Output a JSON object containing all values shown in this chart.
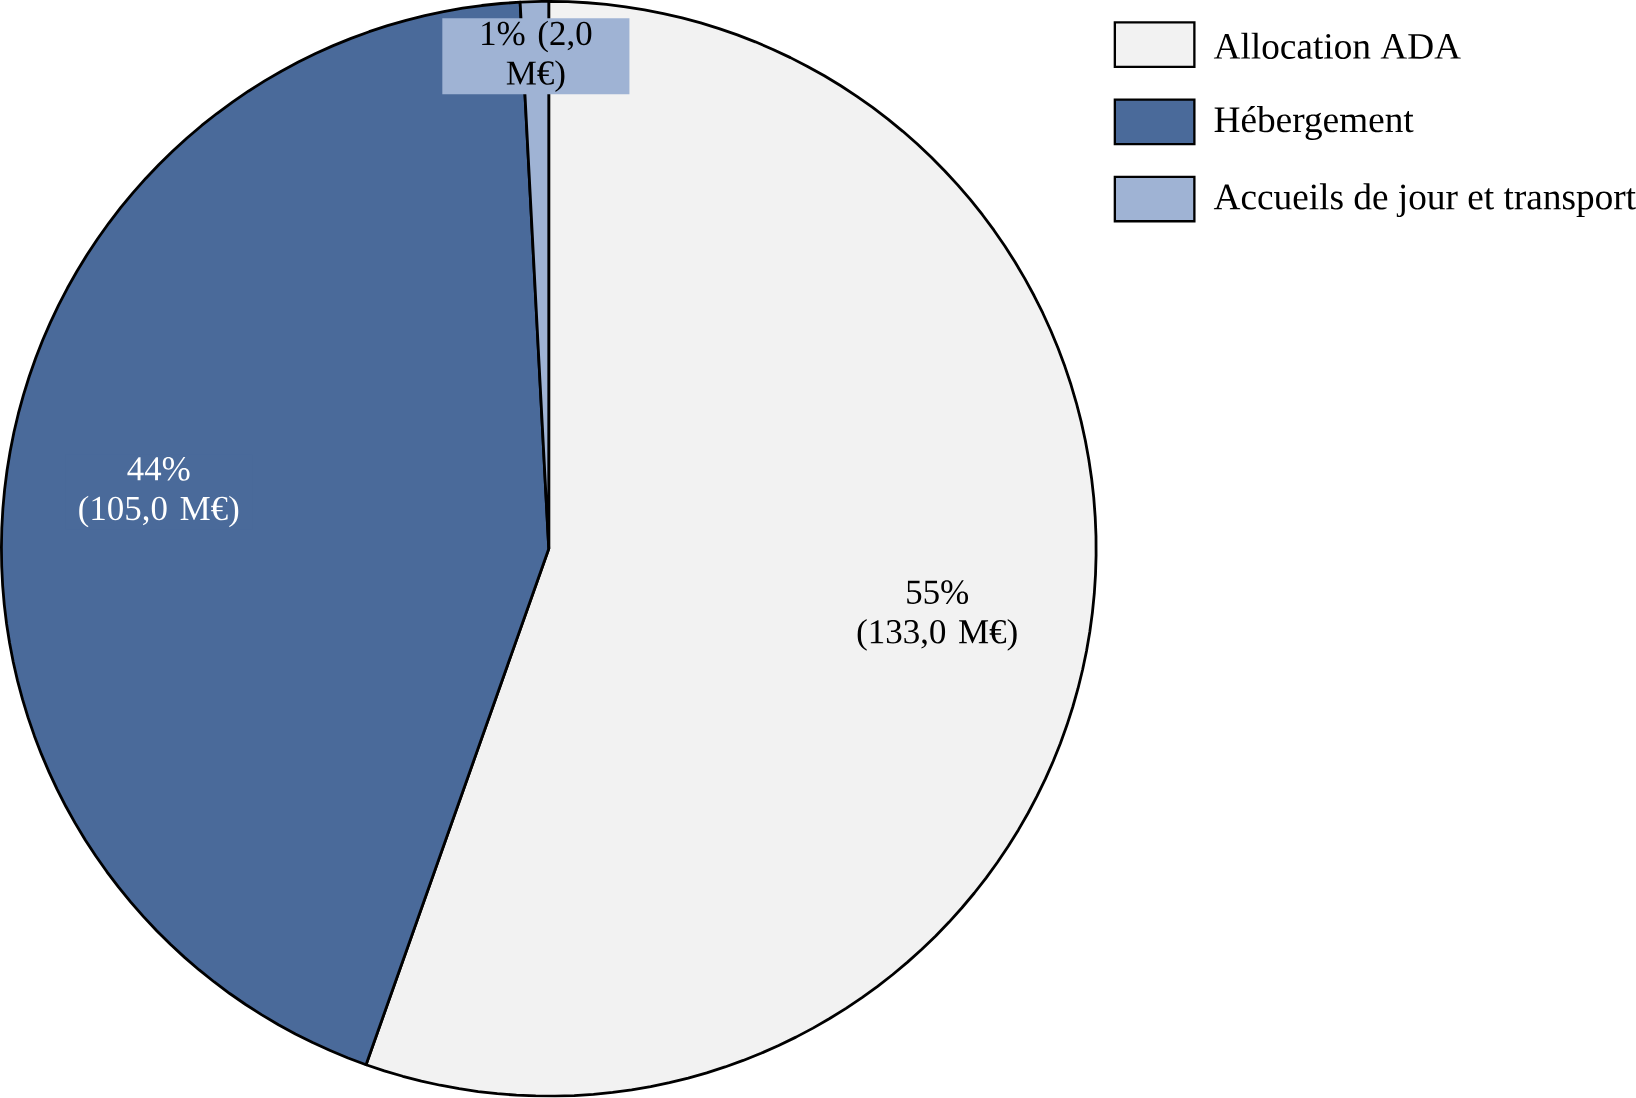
{
  "chart_data": {
    "type": "pie",
    "categories": [
      "Allocation ADA",
      "Hébergement",
      "Accueils de jour et transport"
    ],
    "values": [
      133.0,
      105.0,
      2.0
    ],
    "value_labels": [
      "55% (133,0 M€)",
      "44% (105,0 M€)",
      "1% (2,0 M€)"
    ],
    "colors": [
      "#f2f2f2",
      "#4a6a9a",
      "#9fb3d4"
    ],
    "legend": "top right"
  }
}
